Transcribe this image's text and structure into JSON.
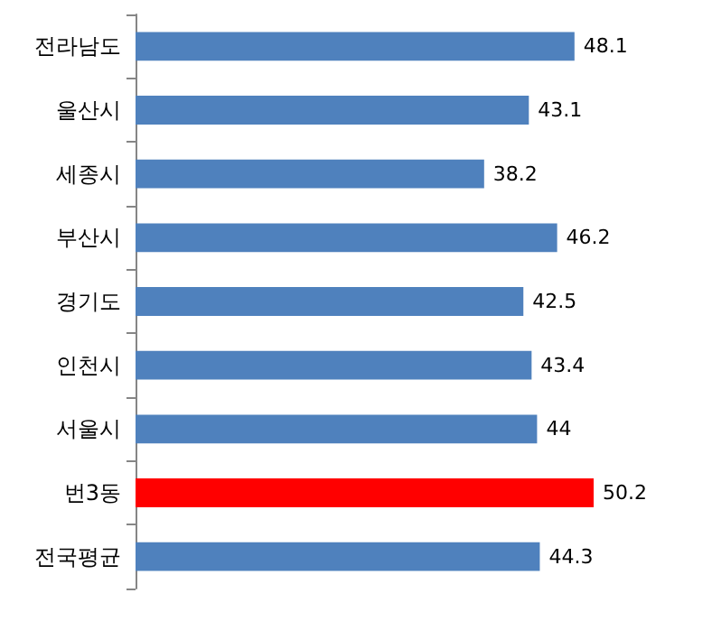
{
  "chart_data": {
    "type": "bar",
    "orientation": "horizontal",
    "categories": [
      "전라남도",
      "울산시",
      "세종시",
      "부산시",
      "경기도",
      "인천시",
      "서울시",
      "번3동",
      "전국평균"
    ],
    "values": [
      48.1,
      43.1,
      38.2,
      46.2,
      42.5,
      43.4,
      44,
      50.2,
      44.3
    ],
    "colors": [
      "#4f81bd",
      "#4f81bd",
      "#4f81bd",
      "#4f81bd",
      "#4f81bd",
      "#4f81bd",
      "#4f81bd",
      "#ff0000",
      "#4f81bd"
    ],
    "data_labels": true
  }
}
